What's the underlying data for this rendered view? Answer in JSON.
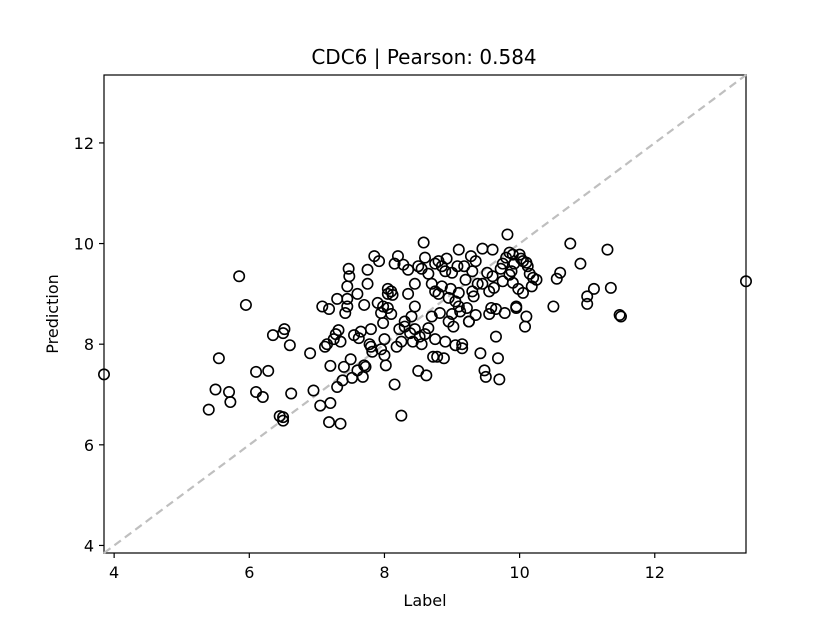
{
  "chart_data": {
    "type": "scatter",
    "title": "CDC6  |  Pearson: 0.584",
    "xlabel": "Label",
    "ylabel": "Prediction",
    "xlim": [
      3.85,
      13.35
    ],
    "ylim": [
      3.85,
      13.35
    ],
    "xticks": [
      "4",
      "6",
      "8",
      "10",
      "12"
    ],
    "yticks": [
      "4",
      "6",
      "8",
      "10",
      "12"
    ],
    "xtick_values": [
      4,
      6,
      8,
      10,
      12
    ],
    "ytick_values": [
      4,
      6,
      8,
      10,
      12
    ],
    "grid": false,
    "reference_line": {
      "style": "dashed",
      "color": "#bfbfbf",
      "from": [
        3.85,
        3.85
      ],
      "to": [
        13.35,
        13.35
      ]
    },
    "marker": {
      "shape": "open-circle",
      "edge_color": "#000000"
    },
    "points": [
      [
        3.85,
        7.4
      ],
      [
        5.4,
        6.7
      ],
      [
        5.5,
        7.1
      ],
      [
        5.55,
        7.72
      ],
      [
        5.7,
        7.05
      ],
      [
        5.72,
        6.85
      ],
      [
        5.85,
        9.35
      ],
      [
        5.95,
        8.78
      ],
      [
        6.1,
        7.45
      ],
      [
        6.1,
        7.05
      ],
      [
        6.2,
        6.95
      ],
      [
        6.28,
        7.47
      ],
      [
        6.35,
        8.18
      ],
      [
        6.45,
        6.57
      ],
      [
        6.5,
        8.22
      ],
      [
        6.52,
        8.3
      ],
      [
        6.5,
        6.55
      ],
      [
        6.5,
        6.48
      ],
      [
        6.6,
        7.98
      ],
      [
        6.62,
        7.02
      ],
      [
        6.9,
        7.82
      ],
      [
        6.95,
        7.08
      ],
      [
        7.05,
        6.78
      ],
      [
        7.08,
        8.75
      ],
      [
        7.12,
        7.95
      ],
      [
        7.15,
        8.0
      ],
      [
        7.18,
        8.7
      ],
      [
        7.2,
        7.57
      ],
      [
        7.18,
        6.45
      ],
      [
        7.2,
        6.83
      ],
      [
        7.25,
        8.1
      ],
      [
        7.28,
        8.2
      ],
      [
        7.3,
        7.15
      ],
      [
        7.32,
        8.28
      ],
      [
        7.3,
        8.9
      ],
      [
        7.35,
        8.05
      ],
      [
        7.35,
        6.42
      ],
      [
        7.4,
        7.55
      ],
      [
        7.38,
        7.28
      ],
      [
        7.42,
        8.62
      ],
      [
        7.45,
        9.15
      ],
      [
        7.45,
        8.75
      ],
      [
        7.47,
        9.5
      ],
      [
        7.48,
        9.35
      ],
      [
        7.45,
        8.9
      ],
      [
        7.5,
        7.7
      ],
      [
        7.52,
        7.33
      ],
      [
        7.55,
        8.18
      ],
      [
        7.6,
        7.48
      ],
      [
        7.62,
        8.12
      ],
      [
        7.65,
        8.25
      ],
      [
        7.68,
        7.35
      ],
      [
        7.7,
        7.58
      ],
      [
        7.72,
        7.55
      ],
      [
        7.75,
        9.48
      ],
      [
        7.78,
        8.0
      ],
      [
        7.8,
        7.95
      ],
      [
        7.82,
        7.85
      ],
      [
        7.85,
        9.75
      ],
      [
        7.9,
        8.82
      ],
      [
        7.92,
        9.65
      ],
      [
        7.95,
        8.62
      ],
      [
        7.98,
        8.42
      ],
      [
        8.0,
        8.1
      ],
      [
        8.0,
        7.78
      ],
      [
        8.02,
        7.58
      ],
      [
        8.05,
        8.72
      ],
      [
        8.05,
        9.1
      ],
      [
        8.1,
        9.05
      ],
      [
        8.12,
        8.98
      ],
      [
        8.15,
        7.2
      ],
      [
        8.18,
        7.95
      ],
      [
        8.2,
        9.75
      ],
      [
        8.22,
        8.3
      ],
      [
        8.25,
        6.58
      ],
      [
        8.28,
        9.58
      ],
      [
        8.3,
        8.45
      ],
      [
        8.35,
        9.48
      ],
      [
        8.38,
        8.22
      ],
      [
        8.42,
        8.05
      ],
      [
        8.45,
        9.2
      ],
      [
        8.45,
        8.75
      ],
      [
        8.5,
        7.47
      ],
      [
        8.52,
        8.15
      ],
      [
        8.55,
        9.5
      ],
      [
        8.58,
        10.02
      ],
      [
        8.6,
        9.72
      ],
      [
        8.62,
        7.38
      ],
      [
        8.65,
        8.32
      ],
      [
        8.7,
        8.55
      ],
      [
        8.72,
        7.75
      ],
      [
        8.75,
        9.6
      ],
      [
        8.75,
        9.05
      ],
      [
        8.78,
        7.75
      ],
      [
        8.8,
        9.65
      ],
      [
        8.82,
        8.62
      ],
      [
        8.85,
        9.55
      ],
      [
        8.85,
        9.15
      ],
      [
        8.88,
        7.72
      ],
      [
        8.9,
        9.45
      ],
      [
        8.92,
        9.7
      ],
      [
        8.95,
        8.92
      ],
      [
        8.98,
        9.1
      ],
      [
        9.0,
        9.42
      ],
      [
        9.02,
        8.35
      ],
      [
        9.05,
        7.98
      ],
      [
        9.08,
        9.55
      ],
      [
        9.1,
        9.88
      ],
      [
        9.1,
        9.02
      ],
      [
        9.12,
        8.65
      ],
      [
        9.15,
        7.92
      ],
      [
        9.18,
        9.55
      ],
      [
        9.2,
        9.28
      ],
      [
        9.22,
        8.72
      ],
      [
        9.25,
        8.45
      ],
      [
        9.28,
        9.75
      ],
      [
        9.3,
        9.45
      ],
      [
        9.32,
        8.95
      ],
      [
        9.35,
        9.65
      ],
      [
        9.38,
        9.2
      ],
      [
        9.42,
        7.82
      ],
      [
        9.45,
        9.9
      ],
      [
        9.48,
        7.48
      ],
      [
        9.5,
        7.35
      ],
      [
        9.52,
        9.42
      ],
      [
        9.55,
        9.05
      ],
      [
        9.58,
        8.72
      ],
      [
        9.6,
        9.88
      ],
      [
        9.62,
        9.12
      ],
      [
        9.65,
        8.15
      ],
      [
        9.68,
        7.72
      ],
      [
        9.7,
        7.3
      ],
      [
        9.72,
        9.5
      ],
      [
        9.75,
        9.25
      ],
      [
        9.78,
        8.62
      ],
      [
        9.8,
        9.72
      ],
      [
        9.82,
        10.18
      ],
      [
        9.85,
        9.82
      ],
      [
        9.88,
        9.45
      ],
      [
        9.9,
        9.22
      ],
      [
        9.92,
        9.6
      ],
      [
        9.95,
        8.75
      ],
      [
        9.98,
        9.1
      ],
      [
        10.0,
        9.78
      ],
      [
        10.02,
        9.7
      ],
      [
        10.05,
        9.02
      ],
      [
        10.08,
        8.35
      ],
      [
        10.1,
        9.62
      ],
      [
        10.12,
        9.55
      ],
      [
        10.15,
        9.4
      ],
      [
        10.18,
        9.15
      ],
      [
        10.2,
        9.32
      ],
      [
        10.25,
        9.28
      ],
      [
        10.5,
        8.75
      ],
      [
        10.55,
        9.3
      ],
      [
        10.6,
        9.42
      ],
      [
        10.75,
        10.0
      ],
      [
        10.9,
        9.6
      ],
      [
        11.0,
        8.95
      ],
      [
        11.0,
        8.8
      ],
      [
        11.1,
        9.1
      ],
      [
        11.3,
        9.88
      ],
      [
        11.35,
        9.12
      ],
      [
        11.48,
        8.58
      ],
      [
        11.5,
        8.55
      ],
      [
        13.35,
        9.25
      ],
      [
        8.05,
        9.0
      ],
      [
        8.3,
        8.35
      ],
      [
        8.4,
        8.55
      ],
      [
        8.6,
        8.2
      ],
      [
        8.7,
        9.2
      ],
      [
        8.9,
        8.05
      ],
      [
        9.0,
        8.6
      ],
      [
        9.05,
        8.85
      ],
      [
        9.15,
        8.0
      ],
      [
        9.25,
        8.45
      ],
      [
        9.35,
        8.58
      ],
      [
        9.55,
        8.6
      ],
      [
        9.65,
        8.7
      ],
      [
        9.85,
        9.38
      ],
      [
        9.95,
        8.72
      ],
      [
        10.1,
        8.55
      ],
      [
        7.7,
        8.78
      ],
      [
        7.8,
        8.3
      ],
      [
        7.95,
        7.9
      ],
      [
        8.1,
        8.6
      ],
      [
        8.25,
        8.05
      ],
      [
        8.45,
        8.3
      ],
      [
        8.55,
        8.0
      ],
      [
        8.75,
        8.1
      ],
      [
        8.95,
        8.45
      ],
      [
        9.1,
        8.75
      ],
      [
        9.3,
        9.05
      ],
      [
        9.45,
        9.2
      ],
      [
        9.6,
        9.35
      ],
      [
        9.75,
        9.6
      ],
      [
        9.9,
        9.78
      ],
      [
        10.05,
        9.65
      ],
      [
        8.8,
        9.0
      ],
      [
        8.65,
        9.4
      ],
      [
        8.5,
        9.55
      ],
      [
        8.35,
        9.0
      ],
      [
        8.15,
        9.6
      ],
      [
        7.98,
        8.75
      ],
      [
        7.75,
        9.2
      ],
      [
        7.6,
        9.0
      ]
    ]
  }
}
